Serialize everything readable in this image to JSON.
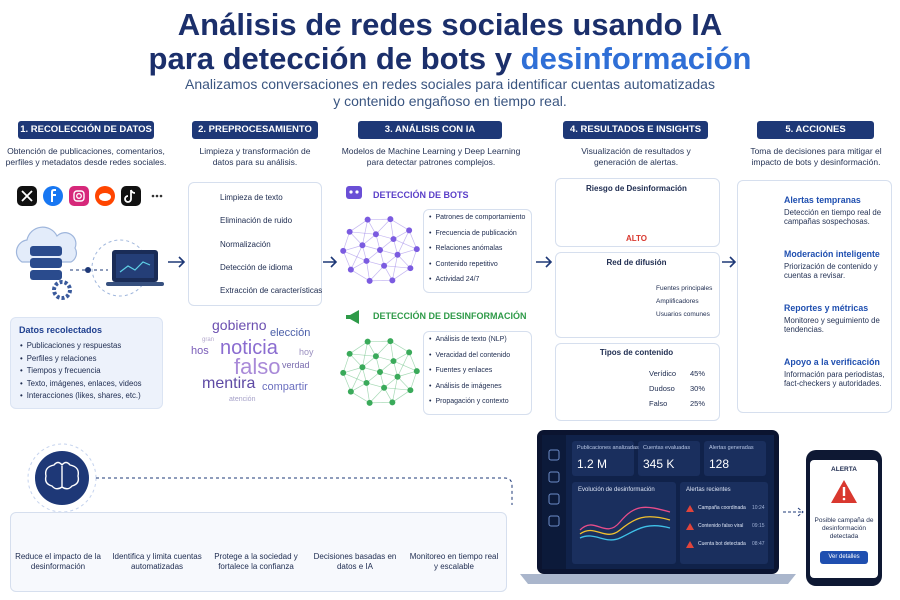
{
  "header": {
    "title_line1": "Análisis de redes sociales usando IA",
    "title_line2": "para detección de bots y",
    "title_highlight": "desinformación",
    "subtitle_line1": "Analizamos conversaciones en redes sociales para identificar cuentas automatizadas",
    "subtitle_line2": "y contenido engañoso en tiempo real."
  },
  "steps": [
    {
      "title": "1. RECOLECCIÓN DE DATOS",
      "description": "Obtención de publicaciones, comentarios, perfiles y metadatos desde redes sociales.",
      "collected": {
        "title": "Datos recolectados",
        "items": [
          "Publicaciones y respuestas",
          "Perfiles y relaciones",
          "Tiempos y frecuencia",
          "Texto, imágenes, enlaces, videos",
          "Interacciones (likes, shares, etc.)"
        ]
      }
    },
    {
      "title": "2. PREPROCESAMIENTO",
      "description": "Limpieza y transformación de datos para su análisis.",
      "items": [
        "Limpieza de texto",
        "Eliminación de ruido",
        "Normalización",
        "Detección de idioma",
        "Extracción de características"
      ],
      "word_cloud": [
        "gobierno",
        "elección",
        "gran",
        "noticia",
        "hoy",
        "hos",
        "falso",
        "verdad",
        "mentira",
        "compartir",
        "atención"
      ]
    },
    {
      "title": "3. ANÁLISIS CON IA",
      "description": "Modelos de Machine Learning y Deep Learning para detectar patrones complejos.",
      "bots": {
        "title": "DETECCIÓN DE BOTS",
        "items": [
          "Patrones de comportamiento",
          "Frecuencia de publicación",
          "Relaciones anómalas",
          "Contenido repetitivo",
          "Actividad 24/7"
        ]
      },
      "disinformation": {
        "title": "DETECCIÓN DE DESINFORMACIÓN",
        "items": [
          "Análisis de texto (NLP)",
          "Veracidad del contenido",
          "Fuentes y enlaces",
          "Análisis de imágenes",
          "Propagación y contexto"
        ]
      }
    },
    {
      "title": "4. RESULTADOS E INSIGHTS",
      "description": "Visualización de resultados y generación de alertas.",
      "risk": {
        "title": "Riesgo de Desinformación",
        "level": "ALTO"
      },
      "network": {
        "title": "Red de difusión",
        "legend": [
          "Fuentes principales",
          "Amplificadores",
          "Usuarios comunes"
        ]
      },
      "content_types": {
        "title": "Tipos de contenido",
        "categories": [
          "Verídico",
          "Dudoso",
          "Falso"
        ],
        "values": [
          45,
          30,
          25
        ],
        "value_labels": [
          "45%",
          "30%",
          "25%"
        ],
        "colors": [
          "#2e9e4f",
          "#f2a51f",
          "#d9382f"
        ]
      }
    },
    {
      "title": "5. ACCIONES",
      "description": "Toma de decisiones para mitigar el impacto de bots y desinformación.",
      "actions": [
        {
          "title": "Alertas tempranas",
          "text": "Detección en tiempo real de campañas sospechosas."
        },
        {
          "title": "Moderación inteligente",
          "text": "Priorización de contenido y cuentas a revisar."
        },
        {
          "title": "Reportes y métricas",
          "text": "Monitoreo y seguimiento de tendencias."
        },
        {
          "title": "Apoyo a la verificación",
          "text": "Información para periodistas, fact-checkers y autoridades."
        }
      ]
    }
  ],
  "benefits": [
    "Reduce el impacto de la desinformación",
    "Identifica y limita cuentas automatizadas",
    "Protege a la sociedad y fortalece la confianza",
    "Decisiones basadas en datos e IA",
    "Monitoreo en tiempo real y escalable"
  ],
  "dashboard": {
    "stats": [
      {
        "label": "Publicaciones analizadas",
        "value": "1.2 M"
      },
      {
        "label": "Cuentas evaluadas",
        "value": "345 K"
      },
      {
        "label": "Alertas generadas",
        "value": "128"
      }
    ],
    "chart_title": "Evolución de desinformación",
    "alerts_title": "Alertas recientes",
    "alerts": [
      {
        "text": "Campaña coordinada",
        "time": "10:24"
      },
      {
        "text": "Contenido falso viral",
        "time": "09:15"
      },
      {
        "text": "Cuenta bot detectada",
        "time": "08:47"
      }
    ]
  },
  "phone": {
    "title": "ALERTA",
    "message": "Posible campaña de desinformación detectada",
    "button": "Ver detalles"
  }
}
